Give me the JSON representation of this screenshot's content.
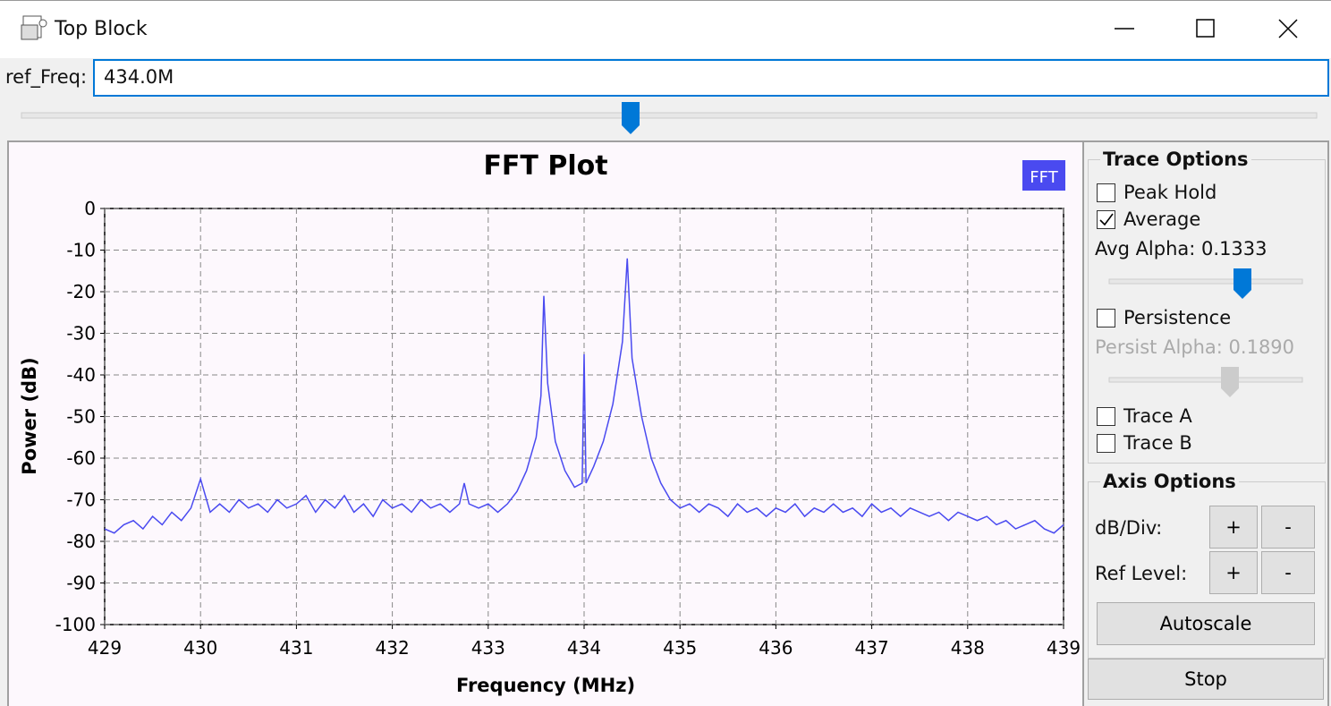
{
  "window": {
    "title": "Top Block"
  },
  "controls": {
    "ref_freq_label": "ref_Freq:",
    "ref_freq_value": "434.0M"
  },
  "chart_data": {
    "type": "line",
    "title": "FFT Plot",
    "x_label": "Frequency (MHz)",
    "y_label": "Power (dB)",
    "xlim": [
      429,
      439
    ],
    "ylim": [
      -100,
      0
    ],
    "xticks": [
      429,
      430,
      431,
      432,
      433,
      434,
      435,
      436,
      437,
      438,
      439
    ],
    "yticks": [
      0,
      -10,
      -20,
      -30,
      -40,
      -50,
      -60,
      -70,
      -80,
      -90,
      -100
    ],
    "grid": true,
    "legend": "top-right",
    "x": [
      429.0,
      429.1,
      429.2,
      429.3,
      429.4,
      429.5,
      429.6,
      429.7,
      429.8,
      429.9,
      430.0,
      430.1,
      430.2,
      430.3,
      430.4,
      430.5,
      430.6,
      430.7,
      430.8,
      430.9,
      431.0,
      431.1,
      431.2,
      431.3,
      431.4,
      431.5,
      431.6,
      431.7,
      431.8,
      431.9,
      432.0,
      432.1,
      432.2,
      432.3,
      432.4,
      432.5,
      432.6,
      432.7,
      432.75,
      432.8,
      432.9,
      433.0,
      433.1,
      433.2,
      433.3,
      433.4,
      433.5,
      433.55,
      433.58,
      433.62,
      433.7,
      433.8,
      433.9,
      433.98,
      434.0,
      434.02,
      434.1,
      434.2,
      434.3,
      434.4,
      434.45,
      434.5,
      434.6,
      434.7,
      434.8,
      434.9,
      435.0,
      435.1,
      435.2,
      435.3,
      435.4,
      435.5,
      435.6,
      435.7,
      435.8,
      435.9,
      436.0,
      436.1,
      436.2,
      436.3,
      436.4,
      436.5,
      436.6,
      436.7,
      436.8,
      436.9,
      437.0,
      437.1,
      437.2,
      437.3,
      437.4,
      437.5,
      437.6,
      437.7,
      437.8,
      437.9,
      438.0,
      438.1,
      438.2,
      438.3,
      438.4,
      438.5,
      438.6,
      438.7,
      438.8,
      438.9,
      439.0
    ],
    "series": [
      {
        "name": "FFT",
        "color": "#4a4af0",
        "values": [
          -77,
          -78,
          -76,
          -75,
          -77,
          -74,
          -76,
          -73,
          -75,
          -72,
          -65,
          -73,
          -71,
          -73,
          -70,
          -72,
          -71,
          -73,
          -70,
          -72,
          -71,
          -69,
          -73,
          -70,
          -72,
          -69,
          -73,
          -71,
          -74,
          -70,
          -72,
          -71,
          -73,
          -70,
          -72,
          -71,
          -73,
          -71,
          -66,
          -71,
          -72,
          -71,
          -73,
          -71,
          -68,
          -63,
          -55,
          -45,
          -21,
          -42,
          -56,
          -63,
          -67,
          -66,
          -35,
          -66,
          -62,
          -56,
          -47,
          -32,
          -12,
          -36,
          -50,
          -60,
          -66,
          -70,
          -72,
          -71,
          -73,
          -71,
          -72,
          -74,
          -71,
          -73,
          -72,
          -74,
          -72,
          -73,
          -71,
          -74,
          -72,
          -73,
          -71,
          -73,
          -72,
          -74,
          -71,
          -73,
          -72,
          -74,
          -72,
          -73,
          -74,
          -73,
          -75,
          -73,
          -74,
          -75,
          -74,
          -76,
          -75,
          -77,
          -76,
          -75,
          -77,
          -78,
          -76
        ]
      }
    ]
  },
  "trace_options": {
    "title": "Trace Options",
    "checkboxes": [
      {
        "label": "Peak Hold",
        "checked": false
      },
      {
        "label": "Average",
        "checked": true
      },
      {
        "label": "Persistence",
        "checked": false
      },
      {
        "label": "Trace A",
        "checked": false
      },
      {
        "label": "Trace B",
        "checked": false
      }
    ],
    "avg_alpha": "Avg Alpha: 0.1333",
    "persist_alpha": "Persist Alpha: 0.1890"
  },
  "axis_options": {
    "title": "Axis Options",
    "db_div": "dB/Div:",
    "ref_level": "Ref Level:",
    "plus": "+",
    "minus": "-",
    "autoscale": "Autoscale"
  },
  "stop": "Stop"
}
